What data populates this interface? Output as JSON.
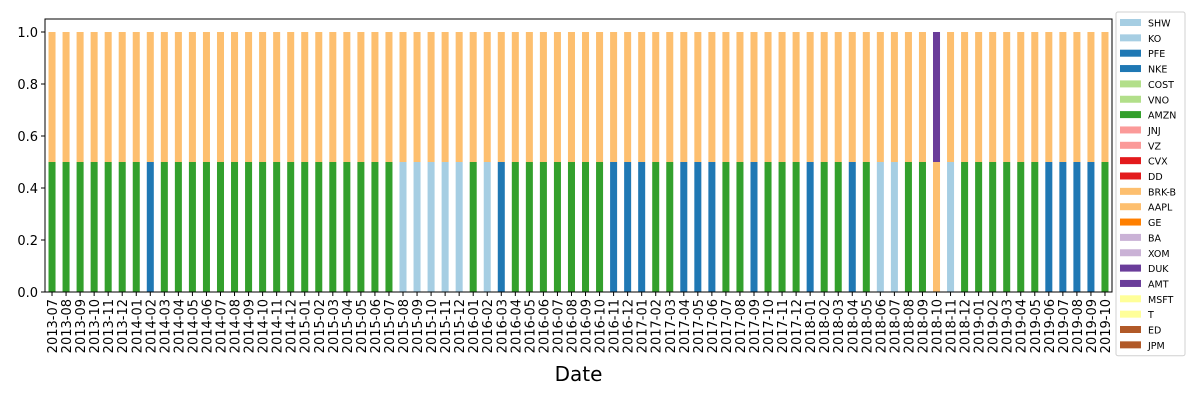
{
  "chart_data": {
    "type": "bar",
    "stacked": true,
    "title": "",
    "xlabel": "Date",
    "ylabel": "",
    "ylim": [
      0,
      1.05
    ],
    "yticks": [
      "0.0",
      "0.2",
      "0.4",
      "0.6",
      "0.8",
      "1.0"
    ],
    "grid": false,
    "legend_position": "right-outside",
    "categories": [
      "2013-07",
      "2013-08",
      "2013-09",
      "2013-10",
      "2013-11",
      "2013-12",
      "2014-01",
      "2014-02",
      "2014-03",
      "2014-04",
      "2014-05",
      "2014-06",
      "2014-07",
      "2014-08",
      "2014-09",
      "2014-10",
      "2014-11",
      "2014-12",
      "2015-01",
      "2015-02",
      "2015-03",
      "2015-04",
      "2015-05",
      "2015-06",
      "2015-07",
      "2015-08",
      "2015-09",
      "2015-10",
      "2015-11",
      "2015-12",
      "2016-01",
      "2016-02",
      "2016-03",
      "2016-04",
      "2016-05",
      "2016-06",
      "2016-07",
      "2016-08",
      "2016-09",
      "2016-10",
      "2016-11",
      "2016-12",
      "2017-01",
      "2017-02",
      "2017-03",
      "2017-04",
      "2017-05",
      "2017-06",
      "2017-07",
      "2017-08",
      "2017-09",
      "2017-10",
      "2017-11",
      "2017-12",
      "2018-01",
      "2018-02",
      "2018-03",
      "2018-04",
      "2018-05",
      "2018-06",
      "2018-07",
      "2018-08",
      "2018-09",
      "2018-10",
      "2018-11",
      "2018-12",
      "2019-01",
      "2019-02",
      "2019-03",
      "2019-04",
      "2019-05",
      "2019-06",
      "2019-07",
      "2019-08",
      "2019-09",
      "2019-10"
    ],
    "legend": [
      {
        "name": "SHW",
        "color": "#a6cee3"
      },
      {
        "name": "KO",
        "color": "#a6cee3"
      },
      {
        "name": "PFE",
        "color": "#1f78b4"
      },
      {
        "name": "NKE",
        "color": "#1f78b4"
      },
      {
        "name": "COST",
        "color": "#b2df8a"
      },
      {
        "name": "VNO",
        "color": "#b2df8a"
      },
      {
        "name": "AMZN",
        "color": "#33a02c"
      },
      {
        "name": "JNJ",
        "color": "#fb9a99"
      },
      {
        "name": "VZ",
        "color": "#fb9a99"
      },
      {
        "name": "CVX",
        "color": "#e31a1c"
      },
      {
        "name": "DD",
        "color": "#e31a1c"
      },
      {
        "name": "BRK-B",
        "color": "#fdbf6f"
      },
      {
        "name": "AAPL",
        "color": "#fdbf6f"
      },
      {
        "name": "GE",
        "color": "#ff7f00"
      },
      {
        "name": "BA",
        "color": "#cab2d6"
      },
      {
        "name": "XOM",
        "color": "#cab2d6"
      },
      {
        "name": "DUK",
        "color": "#6a3d9a"
      },
      {
        "name": "AMT",
        "color": "#6a3d9a"
      },
      {
        "name": "MSFT",
        "color": "#ffff99"
      },
      {
        "name": "T",
        "color": "#ffff99"
      },
      {
        "name": "ED",
        "color": "#b15928"
      },
      {
        "name": "JPM",
        "color": "#b15928"
      }
    ],
    "stacks": [
      [
        [
          "AMZN",
          0.5
        ],
        [
          "AAPL",
          0.5
        ]
      ],
      [
        [
          "AMZN",
          0.5
        ],
        [
          "AAPL",
          0.5
        ]
      ],
      [
        [
          "AMZN",
          0.5
        ],
        [
          "AAPL",
          0.5
        ]
      ],
      [
        [
          "AMZN",
          0.5
        ],
        [
          "AAPL",
          0.5
        ]
      ],
      [
        [
          "AMZN",
          0.5
        ],
        [
          "AAPL",
          0.5
        ]
      ],
      [
        [
          "AMZN",
          0.5
        ],
        [
          "AAPL",
          0.5
        ]
      ],
      [
        [
          "AMZN",
          0.5
        ],
        [
          "AAPL",
          0.5
        ]
      ],
      [
        [
          "NKE",
          0.5
        ],
        [
          "AAPL",
          0.5
        ]
      ],
      [
        [
          "AMZN",
          0.5
        ],
        [
          "AAPL",
          0.5
        ]
      ],
      [
        [
          "AMZN",
          0.5
        ],
        [
          "AAPL",
          0.5
        ]
      ],
      [
        [
          "AMZN",
          0.5
        ],
        [
          "AAPL",
          0.5
        ]
      ],
      [
        [
          "AMZN",
          0.5
        ],
        [
          "AAPL",
          0.5
        ]
      ],
      [
        [
          "AMZN",
          0.5
        ],
        [
          "AAPL",
          0.5
        ]
      ],
      [
        [
          "AMZN",
          0.5
        ],
        [
          "AAPL",
          0.5
        ]
      ],
      [
        [
          "AMZN",
          0.5
        ],
        [
          "AAPL",
          0.5
        ]
      ],
      [
        [
          "AMZN",
          0.5
        ],
        [
          "AAPL",
          0.5
        ]
      ],
      [
        [
          "AMZN",
          0.5
        ],
        [
          "AAPL",
          0.5
        ]
      ],
      [
        [
          "AMZN",
          0.5
        ],
        [
          "AAPL",
          0.5
        ]
      ],
      [
        [
          "AMZN",
          0.5
        ],
        [
          "AAPL",
          0.5
        ]
      ],
      [
        [
          "AMZN",
          0.5
        ],
        [
          "AAPL",
          0.5
        ]
      ],
      [
        [
          "AMZN",
          0.5
        ],
        [
          "AAPL",
          0.5
        ]
      ],
      [
        [
          "AMZN",
          0.5
        ],
        [
          "AAPL",
          0.5
        ]
      ],
      [
        [
          "AMZN",
          0.5
        ],
        [
          "AAPL",
          0.5
        ]
      ],
      [
        [
          "AMZN",
          0.5
        ],
        [
          "AAPL",
          0.5
        ]
      ],
      [
        [
          "AMZN",
          0.5
        ],
        [
          "AAPL",
          0.5
        ]
      ],
      [
        [
          "KO",
          0.5
        ],
        [
          "AAPL",
          0.5
        ]
      ],
      [
        [
          "KO",
          0.5
        ],
        [
          "AAPL",
          0.5
        ]
      ],
      [
        [
          "KO",
          0.5
        ],
        [
          "AAPL",
          0.5
        ]
      ],
      [
        [
          "KO",
          0.5
        ],
        [
          "AAPL",
          0.5
        ]
      ],
      [
        [
          "KO",
          0.5
        ],
        [
          "AAPL",
          0.5
        ]
      ],
      [
        [
          "AMZN",
          0.5
        ],
        [
          "AAPL",
          0.5
        ]
      ],
      [
        [
          "KO",
          0.5
        ],
        [
          "AAPL",
          0.5
        ]
      ],
      [
        [
          "NKE",
          0.5
        ],
        [
          "AAPL",
          0.5
        ]
      ],
      [
        [
          "AMZN",
          0.5
        ],
        [
          "AAPL",
          0.5
        ]
      ],
      [
        [
          "AMZN",
          0.5
        ],
        [
          "AAPL",
          0.5
        ]
      ],
      [
        [
          "AMZN",
          0.5
        ],
        [
          "AAPL",
          0.5
        ]
      ],
      [
        [
          "AMZN",
          0.5
        ],
        [
          "AAPL",
          0.5
        ]
      ],
      [
        [
          "AMZN",
          0.5
        ],
        [
          "AAPL",
          0.5
        ]
      ],
      [
        [
          "AMZN",
          0.5
        ],
        [
          "AAPL",
          0.5
        ]
      ],
      [
        [
          "AMZN",
          0.5
        ],
        [
          "AAPL",
          0.5
        ]
      ],
      [
        [
          "NKE",
          0.5
        ],
        [
          "AAPL",
          0.5
        ]
      ],
      [
        [
          "NKE",
          0.5
        ],
        [
          "AAPL",
          0.5
        ]
      ],
      [
        [
          "NKE",
          0.5
        ],
        [
          "AAPL",
          0.5
        ]
      ],
      [
        [
          "AMZN",
          0.5
        ],
        [
          "AAPL",
          0.5
        ]
      ],
      [
        [
          "AMZN",
          0.5
        ],
        [
          "AAPL",
          0.5
        ]
      ],
      [
        [
          "NKE",
          0.5
        ],
        [
          "AAPL",
          0.5
        ]
      ],
      [
        [
          "NKE",
          0.5
        ],
        [
          "AAPL",
          0.5
        ]
      ],
      [
        [
          "NKE",
          0.5
        ],
        [
          "AAPL",
          0.5
        ]
      ],
      [
        [
          "AMZN",
          0.5
        ],
        [
          "AAPL",
          0.5
        ]
      ],
      [
        [
          "AMZN",
          0.5
        ],
        [
          "AAPL",
          0.5
        ]
      ],
      [
        [
          "NKE",
          0.5
        ],
        [
          "AAPL",
          0.5
        ]
      ],
      [
        [
          "AMZN",
          0.5
        ],
        [
          "AAPL",
          0.5
        ]
      ],
      [
        [
          "AMZN",
          0.5
        ],
        [
          "AAPL",
          0.5
        ]
      ],
      [
        [
          "AMZN",
          0.5
        ],
        [
          "AAPL",
          0.5
        ]
      ],
      [
        [
          "NKE",
          0.5
        ],
        [
          "AAPL",
          0.5
        ]
      ],
      [
        [
          "AMZN",
          0.5
        ],
        [
          "AAPL",
          0.5
        ]
      ],
      [
        [
          "AMZN",
          0.5
        ],
        [
          "AAPL",
          0.5
        ]
      ],
      [
        [
          "NKE",
          0.5
        ],
        [
          "AAPL",
          0.5
        ]
      ],
      [
        [
          "AMZN",
          0.5
        ],
        [
          "AAPL",
          0.5
        ]
      ],
      [
        [
          "KO",
          0.5
        ],
        [
          "AAPL",
          0.5
        ]
      ],
      [
        [
          "KO",
          0.5
        ],
        [
          "AAPL",
          0.5
        ]
      ],
      [
        [
          "AMZN",
          0.5
        ],
        [
          "AAPL",
          0.5
        ]
      ],
      [
        [
          "AMZN",
          0.5
        ],
        [
          "AAPL",
          0.5
        ]
      ],
      [
        [
          "AAPL",
          0.5
        ],
        [
          "AMT",
          0.5
        ]
      ],
      [
        [
          "KO",
          0.5
        ],
        [
          "AAPL",
          0.5
        ]
      ],
      [
        [
          "AMZN",
          0.5
        ],
        [
          "AAPL",
          0.5
        ]
      ],
      [
        [
          "AMZN",
          0.5
        ],
        [
          "AAPL",
          0.5
        ]
      ],
      [
        [
          "AMZN",
          0.5
        ],
        [
          "AAPL",
          0.5
        ]
      ],
      [
        [
          "AMZN",
          0.5
        ],
        [
          "AAPL",
          0.5
        ]
      ],
      [
        [
          "AMZN",
          0.5
        ],
        [
          "AAPL",
          0.5
        ]
      ],
      [
        [
          "AMZN",
          0.5
        ],
        [
          "AAPL",
          0.5
        ]
      ],
      [
        [
          "NKE",
          0.5
        ],
        [
          "AAPL",
          0.5
        ]
      ],
      [
        [
          "NKE",
          0.5
        ],
        [
          "AAPL",
          0.5
        ]
      ],
      [
        [
          "NKE",
          0.5
        ],
        [
          "AAPL",
          0.5
        ]
      ],
      [
        [
          "NKE",
          0.5
        ],
        [
          "AAPL",
          0.5
        ]
      ],
      [
        [
          "AMZN",
          0.5
        ],
        [
          "AAPL",
          0.5
        ]
      ]
    ]
  }
}
